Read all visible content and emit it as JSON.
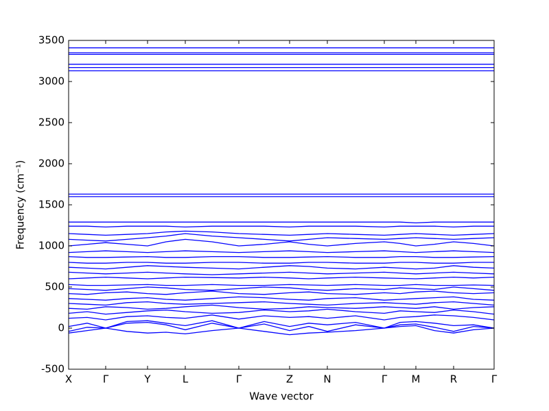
{
  "chart_data": {
    "type": "line",
    "x_label": "Wave vector",
    "y_label": "Frequency (cm⁻¹)",
    "color": "#0000ff",
    "x": [
      0,
      27,
      54,
      85,
      115,
      142,
      170,
      209,
      248,
      285,
      322,
      350,
      377,
      418,
      460,
      483,
      506,
      533,
      561,
      590,
      620
    ],
    "xlim": [
      0,
      620
    ],
    "xticks": [
      {
        "value": 0,
        "label": "X"
      },
      {
        "value": 54,
        "label": "Γ"
      },
      {
        "value": 115,
        "label": "Y"
      },
      {
        "value": 170,
        "label": "L"
      },
      {
        "value": 248,
        "label": "Γ"
      },
      {
        "value": 322,
        "label": "Z"
      },
      {
        "value": 377,
        "label": "N"
      },
      {
        "value": 460,
        "label": "Γ"
      },
      {
        "value": 506,
        "label": "M"
      },
      {
        "value": 561,
        "label": "R"
      },
      {
        "value": 620,
        "label": "Γ"
      }
    ],
    "ylim": [
      -500,
      3500
    ],
    "yticks": [
      -500,
      0,
      500,
      1000,
      1500,
      2000,
      2500,
      3000,
      3500
    ],
    "series": [
      {
        "values": [
          -60,
          -30,
          0,
          -40,
          -60,
          -50,
          -70,
          -30,
          0,
          -40,
          -80,
          -60,
          -50,
          -30,
          0,
          20,
          30,
          -30,
          -60,
          -20,
          0
        ]
      },
      {
        "values": [
          -40,
          10,
          0,
          60,
          70,
          40,
          -20,
          60,
          0,
          50,
          -30,
          20,
          -40,
          40,
          0,
          40,
          50,
          10,
          -40,
          20,
          0
        ]
      },
      {
        "values": [
          20,
          60,
          0,
          80,
          90,
          60,
          30,
          90,
          0,
          80,
          20,
          60,
          40,
          70,
          0,
          70,
          80,
          60,
          30,
          40,
          0
        ]
      },
      {
        "values": [
          120,
          130,
          100,
          140,
          150,
          130,
          120,
          160,
          110,
          150,
          130,
          140,
          120,
          150,
          100,
          130,
          140,
          160,
          150,
          130,
          100
        ]
      },
      {
        "values": [
          180,
          200,
          170,
          190,
          210,
          220,
          200,
          180,
          190,
          220,
          200,
          210,
          230,
          200,
          180,
          210,
          200,
          190,
          220,
          200,
          170
        ]
      },
      {
        "values": [
          240,
          230,
          260,
          250,
          230,
          240,
          260,
          280,
          250,
          230,
          240,
          260,
          250,
          240,
          260,
          250,
          240,
          260,
          230,
          250,
          260
        ]
      },
      {
        "values": [
          300,
          290,
          280,
          310,
          320,
          300,
          290,
          300,
          310,
          320,
          300,
          290,
          280,
          300,
          310,
          300,
          290,
          310,
          320,
          300,
          280
        ]
      },
      {
        "values": [
          360,
          350,
          340,
          360,
          370,
          350,
          340,
          360,
          380,
          370,
          350,
          340,
          360,
          370,
          340,
          350,
          360,
          370,
          380,
          350,
          340
        ]
      },
      {
        "values": [
          420,
          410,
          430,
          440,
          420,
          410,
          430,
          450,
          420,
          410,
          430,
          440,
          420,
          410,
          430,
          420,
          440,
          450,
          430,
          420,
          430
        ]
      },
      {
        "values": [
          480,
          470,
          460,
          480,
          500,
          490,
          470,
          460,
          480,
          500,
          490,
          470,
          460,
          480,
          470,
          490,
          480,
          470,
          500,
          480,
          460
        ]
      },
      {
        "values": [
          530,
          520,
          520,
          525,
          530,
          520,
          520,
          530,
          520,
          520,
          530,
          525,
          520,
          530,
          520,
          520,
          530,
          520,
          520,
          525,
          520
        ]
      },
      {
        "values": [
          600,
          610,
          620,
          610,
          600,
          610,
          620,
          615,
          610,
          620,
          610,
          600,
          610,
          620,
          610,
          605,
          600,
          610,
          620,
          610,
          620
        ]
      },
      {
        "values": [
          680,
          670,
          660,
          670,
          680,
          670,
          660,
          650,
          660,
          670,
          680,
          670,
          660,
          670,
          680,
          670,
          660,
          670,
          680,
          670,
          660
        ]
      },
      {
        "values": [
          740,
          730,
          720,
          740,
          760,
          750,
          740,
          730,
          720,
          740,
          760,
          750,
          730,
          720,
          740,
          730,
          720,
          730,
          760,
          740,
          730
        ]
      },
      {
        "values": [
          800,
          790,
          790,
          800,
          800,
          790,
          790,
          800,
          800,
          790,
          790,
          800,
          800,
          790,
          790,
          800,
          800,
          790,
          790,
          800,
          800
        ]
      },
      {
        "values": [
          870,
          860,
          860,
          865,
          870,
          860,
          860,
          870,
          870,
          860,
          860,
          865,
          870,
          860,
          860,
          870,
          870,
          860,
          860,
          865,
          870
        ]
      },
      {
        "values": [
          920,
          930,
          940,
          930,
          920,
          930,
          940,
          930,
          920,
          930,
          940,
          930,
          920,
          930,
          940,
          930,
          920,
          930,
          940,
          930,
          920
        ]
      },
      {
        "values": [
          1000,
          1020,
          1040,
          1020,
          1000,
          1050,
          1080,
          1050,
          1000,
          1020,
          1050,
          1020,
          1000,
          1030,
          1050,
          1030,
          1000,
          1020,
          1050,
          1030,
          1000
        ]
      },
      {
        "values": [
          1080,
          1070,
          1060,
          1080,
          1100,
          1120,
          1150,
          1120,
          1100,
          1080,
          1060,
          1080,
          1100,
          1090,
          1080,
          1090,
          1100,
          1090,
          1080,
          1090,
          1100
        ]
      },
      {
        "values": [
          1150,
          1140,
          1130,
          1140,
          1150,
          1170,
          1180,
          1170,
          1150,
          1140,
          1130,
          1140,
          1150,
          1140,
          1130,
          1140,
          1150,
          1140,
          1130,
          1140,
          1150
        ]
      },
      {
        "values": [
          1240,
          1240,
          1230,
          1240,
          1240,
          1240,
          1230,
          1240,
          1240,
          1240,
          1230,
          1240,
          1240,
          1240,
          1230,
          1240,
          1240,
          1240,
          1230,
          1240,
          1240
        ]
      },
      {
        "values": [
          1290,
          1290,
          1290,
          1290,
          1290,
          1290,
          1290,
          1290,
          1290,
          1290,
          1290,
          1290,
          1290,
          1290,
          1290,
          1290,
          1280,
          1290,
          1290,
          1290,
          1290
        ]
      },
      {
        "values": [
          1600,
          1600,
          1600,
          1600,
          1600,
          1600,
          1600,
          1600,
          1600,
          1600,
          1600,
          1600,
          1600,
          1600,
          1600,
          1600,
          1600,
          1600,
          1600,
          1600,
          1600
        ]
      },
      {
        "values": [
          1630,
          1630,
          1630,
          1630,
          1630,
          1630,
          1630,
          1630,
          1630,
          1630,
          1630,
          1630,
          1630,
          1630,
          1630,
          1630,
          1630,
          1630,
          1630,
          1630,
          1630
        ]
      },
      {
        "values": [
          3130,
          3130,
          3130,
          3130,
          3130,
          3130,
          3130,
          3130,
          3130,
          3130,
          3130,
          3130,
          3130,
          3130,
          3130,
          3130,
          3130,
          3130,
          3130,
          3130,
          3130
        ]
      },
      {
        "values": [
          3170,
          3170,
          3170,
          3170,
          3170,
          3170,
          3170,
          3170,
          3170,
          3170,
          3170,
          3170,
          3170,
          3170,
          3170,
          3170,
          3170,
          3170,
          3170,
          3170,
          3170
        ]
      },
      {
        "values": [
          3210,
          3210,
          3210,
          3210,
          3210,
          3210,
          3210,
          3210,
          3210,
          3210,
          3210,
          3210,
          3210,
          3210,
          3210,
          3210,
          3210,
          3210,
          3210,
          3210,
          3210
        ]
      },
      {
        "values": [
          3330,
          3330,
          3330,
          3330,
          3330,
          3330,
          3330,
          3330,
          3330,
          3330,
          3330,
          3330,
          3330,
          3330,
          3330,
          3330,
          3330,
          3330,
          3330,
          3330,
          3330
        ]
      },
      {
        "values": [
          3350,
          3350,
          3350,
          3350,
          3350,
          3350,
          3350,
          3350,
          3350,
          3350,
          3350,
          3350,
          3350,
          3350,
          3350,
          3350,
          3350,
          3350,
          3350,
          3350,
          3350
        ]
      },
      {
        "values": [
          3410,
          3410,
          3410,
          3410,
          3410,
          3410,
          3410,
          3410,
          3410,
          3410,
          3410,
          3410,
          3410,
          3410,
          3410,
          3410,
          3410,
          3410,
          3410,
          3410,
          3410
        ]
      }
    ]
  }
}
